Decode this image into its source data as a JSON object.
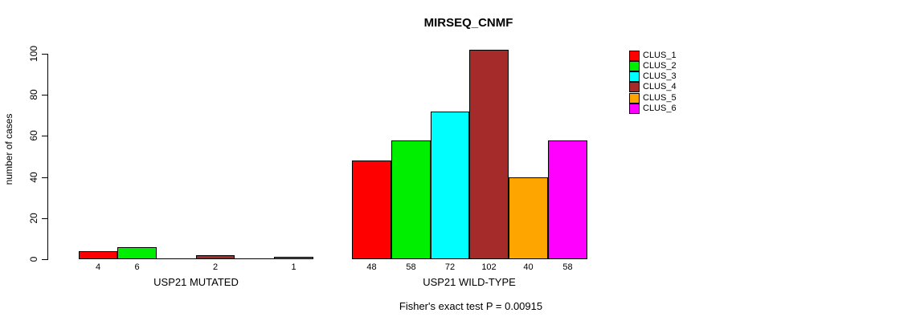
{
  "chart_data": {
    "type": "bar",
    "title": "MIRSEQ_CNMF",
    "ylabel": "number of cases",
    "xlabel": "",
    "ylim": [
      0,
      100
    ],
    "y_ticks": [
      0,
      20,
      40,
      60,
      80,
      100
    ],
    "grid": false,
    "legend_position": "right-outside",
    "series": [
      {
        "name": "CLUS_1",
        "color": "#FF0000"
      },
      {
        "name": "CLUS_2",
        "color": "#00EE00"
      },
      {
        "name": "CLUS_3",
        "color": "#00FFFF"
      },
      {
        "name": "CLUS_4",
        "color": "#A52A2A"
      },
      {
        "name": "CLUS_5",
        "color": "#FFA500"
      },
      {
        "name": "CLUS_6",
        "color": "#FF00FF"
      }
    ],
    "groups": [
      {
        "label": "USP21 MUTATED",
        "values": [
          4,
          6,
          0,
          2,
          0,
          1
        ],
        "bar_labels": [
          "4",
          "6",
          "",
          "2",
          "",
          "1"
        ]
      },
      {
        "label": "USP21 WILD-TYPE",
        "values": [
          48,
          58,
          72,
          102,
          40,
          58
        ],
        "bar_labels": [
          "48",
          "58",
          "72",
          "102",
          "40",
          "58"
        ]
      }
    ],
    "annotation": "Fisher's exact test P = 0.00915"
  }
}
